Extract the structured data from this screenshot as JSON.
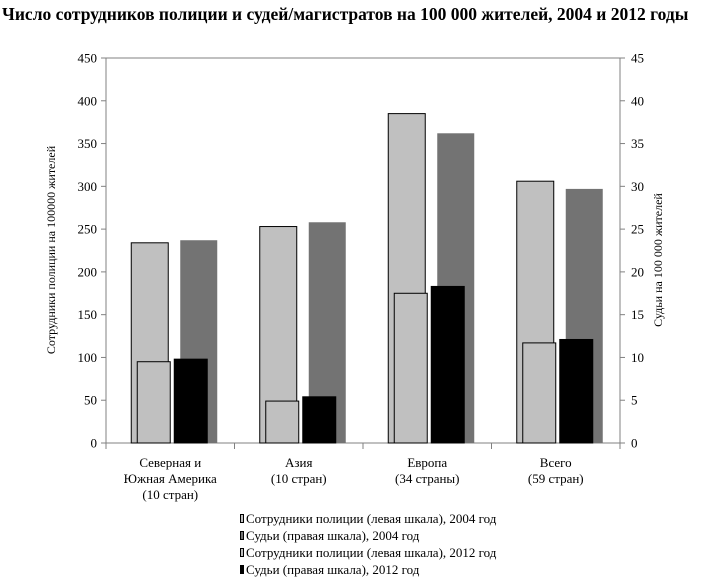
{
  "title": "Число сотрудников полиции и судей/магистратов на 100 000 жителей, 2004 и 2012 годы",
  "chart_data": {
    "type": "bar",
    "title": "Число сотрудников полиции и судей/магистратов на 100 000 жителей, 2004 и 2012 годы",
    "categories": [
      [
        "Северная и",
        "Южная Америка",
        "(10 стран)"
      ],
      [
        "Азия",
        "(10 стран)"
      ],
      [
        "Европа",
        "(34 страны)"
      ],
      [
        "Всего",
        "(59 стран)"
      ]
    ],
    "ylabel_left": "Сотрудники полиции на 100000 жителей",
    "ylabel_right": "Судьи на 100 000 жителей",
    "ylim_left": [
      0,
      450
    ],
    "ylim_right": [
      0,
      45
    ],
    "yticks_left": [
      0,
      50,
      100,
      150,
      200,
      250,
      300,
      350,
      400,
      450
    ],
    "yticks_right": [
      0,
      5,
      10,
      15,
      20,
      25,
      30,
      35,
      40,
      45
    ],
    "series": [
      {
        "name": "Сотрудники полиции (левая шкала), 2004 год",
        "axis": "left",
        "color": "#c0c0c0",
        "values": [
          234,
          253,
          385,
          306
        ]
      },
      {
        "name": "Судьи (правая шкала), 2004 год",
        "axis": "right",
        "color": "#737373",
        "values": [
          23.7,
          25.8,
          36.2,
          29.7
        ]
      },
      {
        "name": "Сотрудники полиции (левая шкала), 2012 год",
        "axis": "left",
        "color": "#c0c0c0",
        "values": [
          95,
          49,
          175,
          117
        ]
      },
      {
        "name": "Судьи (правая шкала), 2012 год",
        "axis": "right",
        "color": "#000000",
        "values": [
          9.8,
          5.4,
          18.3,
          12.1
        ]
      }
    ],
    "grid": false,
    "legend_position": "bottom"
  }
}
